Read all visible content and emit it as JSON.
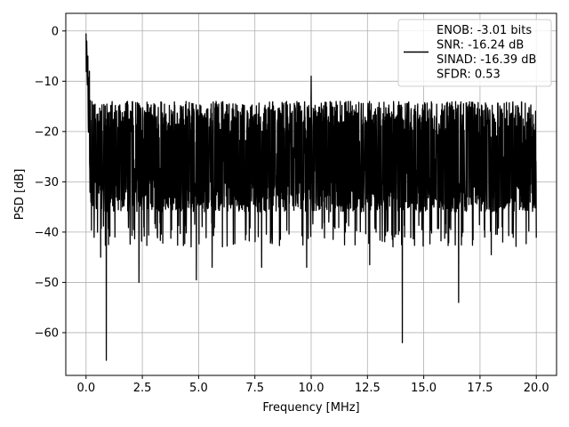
{
  "chart_data": {
    "type": "line",
    "title": "",
    "xlabel": "Frequency [MHz]",
    "ylabel": "PSD [dB]",
    "xlim": [
      -0.9,
      20.9
    ],
    "ylim": [
      -68.5,
      3.5
    ],
    "xticks": [
      0.0,
      2.5,
      5.0,
      7.5,
      10.0,
      12.5,
      15.0,
      17.5,
      20.0
    ],
    "xtick_labels": [
      "0.0",
      "2.5",
      "5.0",
      "7.5",
      "10.0",
      "12.5",
      "15.0",
      "17.5",
      "20.0"
    ],
    "yticks": [
      0,
      -10,
      -20,
      -30,
      -40,
      -50,
      -60
    ],
    "ytick_labels": [
      "0",
      "−10",
      "−20",
      "−30",
      "−40",
      "−50",
      "−60"
    ],
    "grid": true,
    "legend_position": "top-right",
    "legend_entries": [
      "ENOB: -3.01 bits",
      "SNR: -16.24 dB",
      "SINAD: -16.39 dB",
      "SFDR: 0.53"
    ],
    "series_color": "#000000",
    "series": [
      {
        "x_start": 0.0,
        "x_end": 20.0,
        "noise_band_db": [
          -36,
          -14
        ],
        "peaks": [
          {
            "x": 0.0,
            "y": -0.5
          },
          {
            "x": 0.03,
            "y": -2
          },
          {
            "x": 0.08,
            "y": -5
          },
          {
            "x": 0.15,
            "y": -8
          },
          {
            "x": 10.0,
            "y": -9
          }
        ],
        "dips": [
          {
            "x": 0.65,
            "y": -45
          },
          {
            "x": 0.9,
            "y": -65.5
          },
          {
            "x": 2.35,
            "y": -50
          },
          {
            "x": 4.9,
            "y": -49.5
          },
          {
            "x": 5.6,
            "y": -47
          },
          {
            "x": 7.8,
            "y": -47
          },
          {
            "x": 9.8,
            "y": -47
          },
          {
            "x": 12.6,
            "y": -46.5
          },
          {
            "x": 14.05,
            "y": -62
          },
          {
            "x": 16.55,
            "y": -54
          },
          {
            "x": 18.0,
            "y": -44.5
          }
        ]
      }
    ]
  }
}
